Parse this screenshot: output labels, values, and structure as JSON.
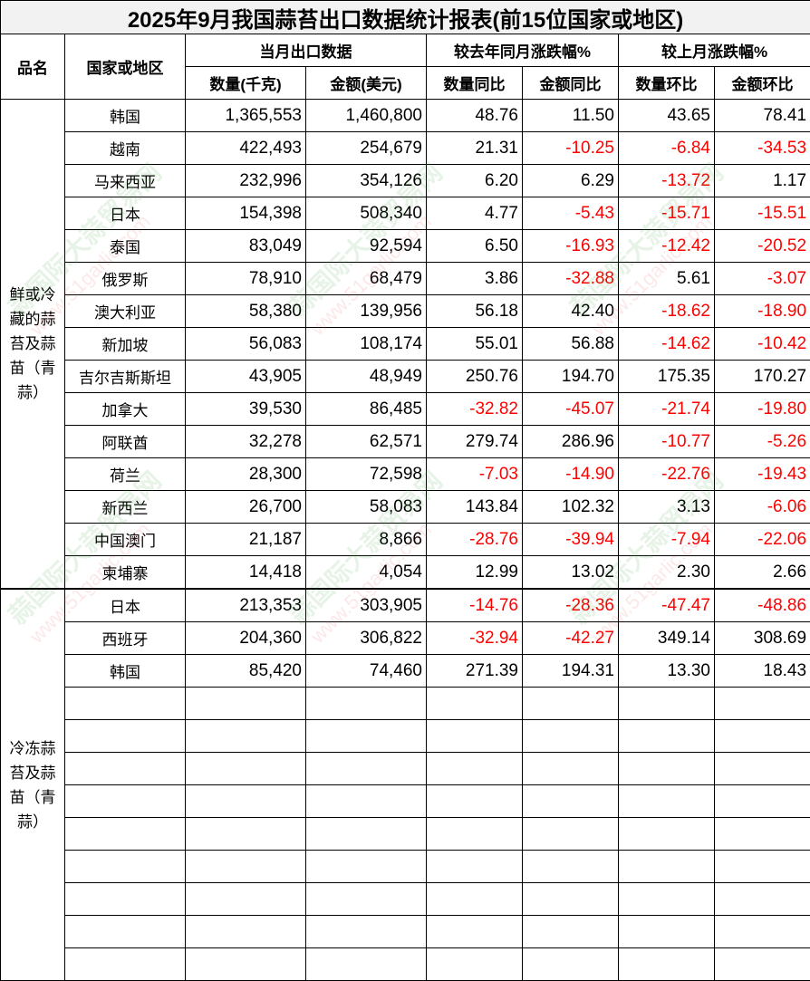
{
  "title": "2025年9月我国蒜苔出口数据统计报表(前15位国家或地区)",
  "headers": {
    "category": "品名",
    "country": "国家或地区",
    "current_month": "当月出口数据",
    "yoy": "较去年同月涨跌幅%",
    "mom": "较上月涨跌幅%",
    "quantity": "数量(千克)",
    "amount": "金额(美元)",
    "qty_yoy": "数量同比",
    "amt_yoy": "金额同比",
    "qty_mom": "数量环比",
    "amt_mom": "金额环比"
  },
  "colors": {
    "negative": "#ff0000",
    "title_bg": "#f2f2f2"
  },
  "watermark": {
    "text": "蒜国际大蒜贸易网",
    "url": "www.51garlic.com"
  },
  "groups": [
    {
      "category": "鲜或冷藏的蒜苔及蒜苗（青蒜）",
      "empty_rows": 0,
      "rows": [
        [
          "韩国",
          "1,365,553",
          "1,460,800",
          "48.76",
          "11.50",
          "43.65",
          "78.41"
        ],
        [
          "越南",
          "422,493",
          "254,679",
          "21.31",
          "-10.25",
          "-6.84",
          "-34.53"
        ],
        [
          "马来西亚",
          "232,996",
          "354,126",
          "6.20",
          "6.29",
          "-13.72",
          "1.17"
        ],
        [
          "日本",
          "154,398",
          "508,340",
          "4.77",
          "-5.43",
          "-15.71",
          "-15.51"
        ],
        [
          "泰国",
          "83,049",
          "92,594",
          "6.50",
          "-16.93",
          "-12.42",
          "-20.52"
        ],
        [
          "俄罗斯",
          "78,910",
          "68,479",
          "3.86",
          "-32.88",
          "5.61",
          "-3.07"
        ],
        [
          "澳大利亚",
          "58,380",
          "139,956",
          "56.18",
          "42.40",
          "-18.62",
          "-18.90"
        ],
        [
          "新加坡",
          "56,083",
          "108,174",
          "55.01",
          "56.88",
          "-14.62",
          "-10.42"
        ],
        [
          "吉尔吉斯斯坦",
          "43,905",
          "48,949",
          "250.76",
          "194.70",
          "175.35",
          "170.27"
        ],
        [
          "加拿大",
          "39,530",
          "86,485",
          "-32.82",
          "-45.07",
          "-21.74",
          "-19.80"
        ],
        [
          "阿联酋",
          "32,278",
          "62,571",
          "279.74",
          "286.96",
          "-10.77",
          "-5.26"
        ],
        [
          "荷兰",
          "28,300",
          "72,598",
          "-7.03",
          "-14.90",
          "-22.76",
          "-19.43"
        ],
        [
          "新西兰",
          "26,700",
          "58,083",
          "143.84",
          "102.32",
          "3.13",
          "-6.06"
        ],
        [
          "中国澳门",
          "21,187",
          "8,866",
          "-28.76",
          "-39.94",
          "-7.94",
          "-22.06"
        ],
        [
          "柬埔寨",
          "14,418",
          "4,054",
          "12.99",
          "13.02",
          "2.30",
          "2.66"
        ]
      ]
    },
    {
      "category": "冷冻蒜苔及蒜苗（青蒜）",
      "empty_rows": 9,
      "rows": [
        [
          "日本",
          "213,353",
          "303,905",
          "-14.76",
          "-28.36",
          "-47.47",
          "-48.86"
        ],
        [
          "西班牙",
          "204,360",
          "306,822",
          "-32.94",
          "-42.27",
          "349.14",
          "308.69"
        ],
        [
          "韩国",
          "85,420",
          "74,460",
          "271.39",
          "194.31",
          "13.30",
          "18.43"
        ]
      ]
    }
  ]
}
